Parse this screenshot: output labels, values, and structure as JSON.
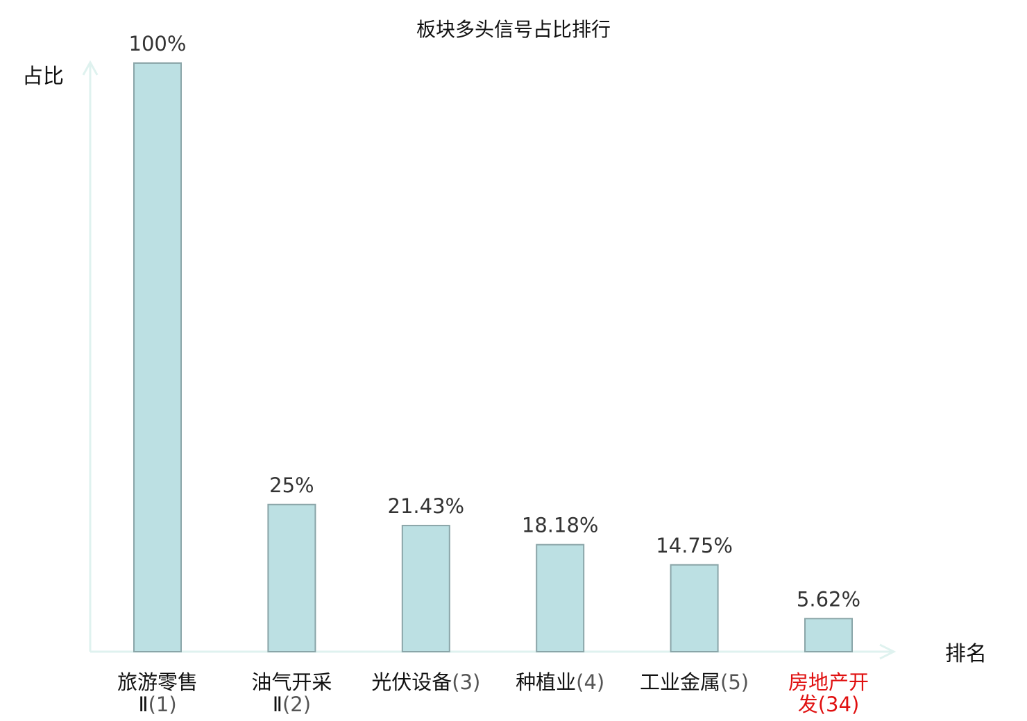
{
  "chart_data": {
    "type": "bar",
    "title": "板块多头信号占比排行",
    "ylabel": "占比",
    "xlabel": "排名",
    "categories": [
      {
        "lines": [
          "旅游零售",
          "Ⅱ(1)"
        ],
        "highlight": false
      },
      {
        "lines": [
          "油气开采",
          "Ⅱ(2)"
        ],
        "highlight": false
      },
      {
        "lines": [
          "光伏设备(3)"
        ],
        "highlight": false
      },
      {
        "lines": [
          "种植业(4)"
        ],
        "highlight": false
      },
      {
        "lines": [
          "工业金属(5)"
        ],
        "highlight": false
      },
      {
        "lines": [
          "房地产开",
          "发(34)"
        ],
        "highlight": true
      }
    ],
    "values": [
      100,
      25,
      21.43,
      18.18,
      14.75,
      5.62
    ],
    "value_labels": [
      "100%",
      "25%",
      "21.43%",
      "18.18%",
      "14.75%",
      "5.62%"
    ],
    "ylim": [
      0,
      100
    ],
    "grid": false,
    "colors": {
      "bar_fill": "#bce0e3",
      "bar_stroke": "#8aa5a8",
      "axis": "#dff2ef",
      "highlight_text": "#e01010"
    }
  }
}
